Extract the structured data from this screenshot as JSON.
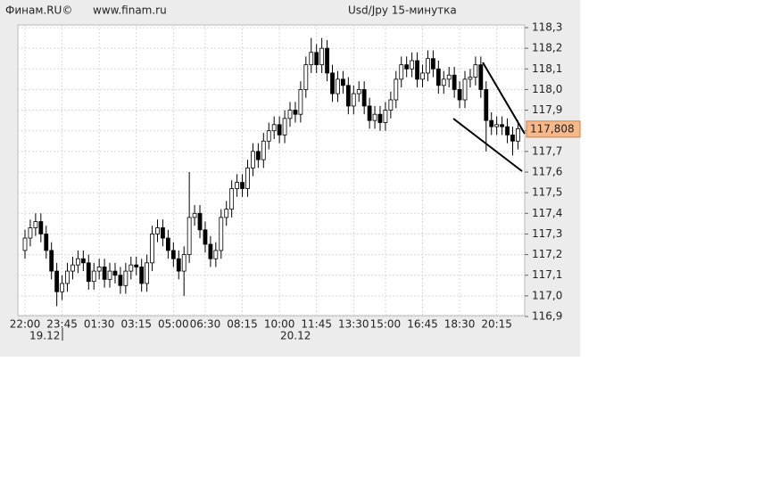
{
  "chart_data": {
    "type": "candlestick",
    "brand": "Финам.RU©",
    "site": "www.finam.ru",
    "title": "Usd/Jpy 15-минутка",
    "date_labels": [
      "19.12",
      "20.12"
    ],
    "categories": [
      "22:00",
      null,
      null,
      null,
      null,
      null,
      null,
      "23:45",
      null,
      null,
      null,
      null,
      null,
      null,
      "01:30",
      null,
      null,
      null,
      null,
      null,
      null,
      "03:15",
      null,
      null,
      null,
      null,
      null,
      null,
      "05:00",
      null,
      null,
      null,
      null,
      null,
      "06:30",
      null,
      null,
      null,
      null,
      null,
      null,
      "08:15",
      null,
      null,
      null,
      null,
      null,
      null,
      "10:00",
      null,
      null,
      null,
      null,
      null,
      null,
      "11:45",
      null,
      null,
      null,
      null,
      null,
      null,
      "13:30",
      null,
      null,
      null,
      null,
      null,
      "15:00",
      null,
      null,
      null,
      null,
      null,
      null,
      "16:45",
      null,
      null,
      null,
      null,
      null,
      null,
      "18:30",
      null,
      null,
      null,
      null,
      null,
      null,
      "20:15",
      null,
      null,
      null,
      null
    ],
    "open": [
      117.22,
      117.28,
      117.33,
      117.36,
      117.3,
      117.22,
      117.12,
      117.02,
      117.06,
      117.12,
      117.15,
      117.18,
      117.16,
      117.07,
      117.12,
      117.14,
      117.08,
      117.12,
      117.1,
      117.05,
      117.12,
      117.15,
      117.14,
      117.06,
      117.16,
      117.3,
      117.33,
      117.28,
      117.22,
      117.18,
      117.12,
      117.2,
      117.38,
      117.4,
      117.32,
      117.25,
      117.18,
      117.22,
      117.38,
      117.42,
      117.52,
      117.55,
      117.52,
      117.62,
      117.7,
      117.66,
      117.75,
      117.8,
      117.83,
      117.78,
      117.86,
      117.9,
      117.88,
      118.0,
      118.12,
      118.18,
      118.12,
      118.2,
      118.08,
      117.98,
      118.05,
      118.02,
      117.92,
      117.98,
      118.0,
      117.92,
      117.85,
      117.88,
      117.84,
      117.9,
      117.95,
      118.05,
      118.12,
      118.1,
      118.14,
      118.05,
      118.08,
      118.15,
      118.1,
      118.02,
      118.05,
      118.07,
      118.0,
      117.95,
      118.05,
      118.06,
      118.12,
      118.0,
      117.85,
      117.82,
      117.83,
      117.82,
      117.78,
      117.75
    ],
    "high": [
      117.32,
      117.37,
      117.4,
      117.4,
      117.34,
      117.26,
      117.16,
      117.1,
      117.16,
      117.19,
      117.22,
      117.22,
      117.2,
      117.16,
      117.18,
      117.18,
      117.16,
      117.16,
      117.14,
      117.16,
      117.19,
      117.19,
      117.18,
      117.2,
      117.34,
      117.37,
      117.37,
      117.32,
      117.26,
      117.22,
      117.24,
      117.6,
      117.44,
      117.44,
      117.36,
      117.29,
      117.26,
      117.42,
      117.46,
      117.56,
      117.59,
      117.59,
      117.66,
      117.74,
      117.74,
      117.79,
      117.84,
      117.87,
      117.87,
      117.9,
      117.94,
      117.94,
      118.04,
      118.16,
      118.25,
      118.22,
      118.25,
      118.24,
      118.12,
      118.09,
      118.09,
      118.06,
      118.02,
      118.04,
      118.04,
      117.96,
      117.92,
      117.92,
      117.94,
      117.99,
      118.09,
      118.16,
      118.16,
      118.18,
      118.18,
      118.12,
      118.19,
      118.19,
      118.14,
      118.09,
      118.11,
      118.11,
      118.04,
      118.09,
      118.1,
      118.16,
      118.16,
      118.04,
      117.89,
      117.87,
      117.87,
      117.86,
      117.82,
      117.85
    ],
    "low": [
      117.18,
      117.24,
      117.29,
      117.26,
      117.18,
      117.08,
      116.95,
      116.98,
      117.02,
      117.08,
      117.11,
      117.12,
      117.03,
      117.03,
      117.08,
      117.04,
      117.04,
      117.06,
      117.01,
      117.01,
      117.08,
      117.1,
      117.02,
      117.02,
      117.12,
      117.26,
      117.24,
      117.18,
      117.14,
      117.08,
      117.0,
      117.16,
      117.34,
      117.28,
      117.21,
      117.14,
      117.14,
      117.18,
      117.34,
      117.38,
      117.48,
      117.48,
      117.48,
      117.58,
      117.62,
      117.62,
      117.71,
      117.76,
      117.74,
      117.74,
      117.82,
      117.84,
      117.84,
      117.96,
      118.08,
      118.08,
      118.08,
      118.04,
      117.94,
      117.94,
      117.98,
      117.88,
      117.88,
      117.94,
      117.88,
      117.81,
      117.81,
      117.8,
      117.8,
      117.86,
      117.91,
      118.01,
      118.06,
      118.06,
      118.01,
      118.01,
      118.04,
      118.06,
      117.98,
      117.98,
      118.01,
      117.96,
      117.91,
      117.91,
      118.01,
      118.02,
      117.96,
      117.7,
      117.78,
      117.78,
      117.78,
      117.74,
      117.68,
      117.71
    ],
    "close": [
      117.28,
      117.33,
      117.36,
      117.3,
      117.22,
      117.12,
      117.02,
      117.06,
      117.12,
      117.15,
      117.18,
      117.16,
      117.07,
      117.12,
      117.14,
      117.08,
      117.12,
      117.1,
      117.05,
      117.12,
      117.15,
      117.14,
      117.06,
      117.16,
      117.3,
      117.33,
      117.28,
      117.22,
      117.18,
      117.12,
      117.2,
      117.38,
      117.4,
      117.32,
      117.25,
      117.18,
      117.22,
      117.38,
      117.42,
      117.52,
      117.55,
      117.52,
      117.62,
      117.7,
      117.66,
      117.75,
      117.8,
      117.83,
      117.78,
      117.86,
      117.9,
      117.88,
      118.0,
      118.12,
      118.18,
      118.12,
      118.2,
      118.08,
      117.98,
      118.05,
      118.02,
      117.92,
      117.98,
      118.0,
      117.92,
      117.85,
      117.88,
      117.84,
      117.9,
      117.95,
      118.05,
      118.12,
      118.1,
      118.14,
      118.05,
      118.08,
      118.15,
      118.1,
      118.02,
      118.05,
      118.07,
      118.0,
      117.95,
      118.05,
      118.06,
      118.12,
      118.0,
      117.85,
      117.82,
      117.83,
      117.82,
      117.78,
      117.75,
      117.81
    ],
    "up_color": "#ffffff",
    "down_color": "#000000",
    "ylim": [
      116.9,
      118.3
    ],
    "yticks": [
      {
        "value": 116.9,
        "label": "116,9"
      },
      {
        "value": 117.0,
        "label": "117,0"
      },
      {
        "value": 117.1,
        "label": "117,1"
      },
      {
        "value": 117.2,
        "label": "117,2"
      },
      {
        "value": 117.3,
        "label": "117,3"
      },
      {
        "value": 117.4,
        "label": "117,4"
      },
      {
        "value": 117.5,
        "label": "117,5"
      },
      {
        "value": 117.6,
        "label": "117,6"
      },
      {
        "value": 117.7,
        "label": "117,7"
      },
      {
        "value": 117.8,
        "label": "117,8"
      },
      {
        "value": 117.9,
        "label": "117,9"
      },
      {
        "value": 118.0,
        "label": "118,0"
      },
      {
        "value": 118.1,
        "label": "118,1"
      },
      {
        "value": 118.2,
        "label": "118,2"
      },
      {
        "value": 118.3,
        "label": "118,3"
      }
    ],
    "last_price": {
      "value": 117.808,
      "label": "117,808"
    },
    "grid": true
  }
}
